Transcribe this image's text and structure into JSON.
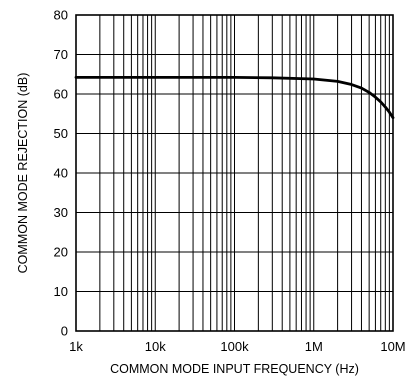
{
  "chart_data": {
    "type": "line",
    "xlabel": "COMMON MODE INPUT FREQUENCY (Hz)",
    "ylabel": "COMMON MODE REJECTION (dB)",
    "x_scale": "log",
    "xlim": [
      1000,
      10000000
    ],
    "ylim": [
      0,
      80
    ],
    "grid": true,
    "x_ticks": [
      {
        "value": 1000,
        "label": "1k"
      },
      {
        "value": 10000,
        "label": "10k"
      },
      {
        "value": 100000,
        "label": "100k"
      },
      {
        "value": 1000000,
        "label": "1M"
      },
      {
        "value": 10000000,
        "label": "10M"
      }
    ],
    "y_ticks": [
      {
        "value": 0,
        "label": "0"
      },
      {
        "value": 10,
        "label": "10"
      },
      {
        "value": 20,
        "label": "20"
      },
      {
        "value": 30,
        "label": "30"
      },
      {
        "value": 40,
        "label": "40"
      },
      {
        "value": 50,
        "label": "50"
      },
      {
        "value": 60,
        "label": "60"
      },
      {
        "value": 70,
        "label": "70"
      },
      {
        "value": 80,
        "label": "80"
      }
    ],
    "series": [
      {
        "x": [
          1000,
          10000,
          100000,
          300000,
          1000000,
          2000000,
          3000000,
          4000000,
          5000000,
          6000000,
          7000000,
          8000000,
          9000000,
          10000000
        ],
        "y": [
          64.2,
          64.2,
          64.2,
          64.1,
          63.8,
          63.2,
          62.4,
          61.5,
          60.4,
          59.2,
          58.0,
          56.7,
          55.4,
          54.0
        ]
      }
    ]
  }
}
